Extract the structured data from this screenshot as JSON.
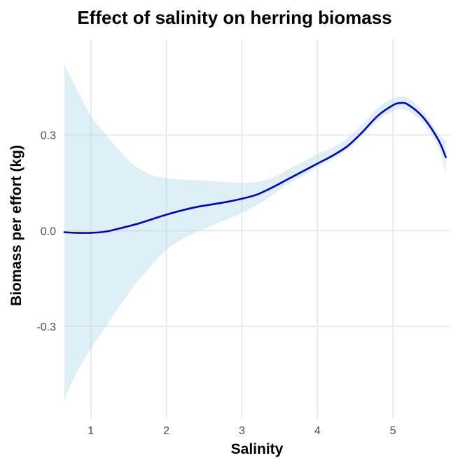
{
  "chart_data": {
    "type": "line",
    "title": "Effect of salinity on herring biomass",
    "xlabel": "Salinity",
    "ylabel": "Biomass per effort (kg)",
    "xlim": [
      0.65,
      5.75
    ],
    "ylim": [
      -0.59,
      0.6
    ],
    "x_ticks": [
      {
        "value": 1,
        "label": "1"
      },
      {
        "value": 2,
        "label": "2"
      },
      {
        "value": 3,
        "label": "3"
      },
      {
        "value": 4,
        "label": "4"
      },
      {
        "value": 5,
        "label": "5"
      }
    ],
    "y_ticks": [
      {
        "value": -0.3,
        "label": "-0.3"
      },
      {
        "value": 0.0,
        "label": "0.0"
      },
      {
        "value": 0.3,
        "label": "0.3"
      }
    ],
    "grid": true,
    "legend": "none",
    "colors": {
      "line": "#0000CD",
      "ribbon": "#ADD8E6"
    },
    "series": [
      {
        "x": [
          0.65,
          0.8,
          1.0,
          1.2,
          1.4,
          1.6,
          1.8,
          2.0,
          2.2,
          2.4,
          2.6,
          2.8,
          3.0,
          3.2,
          3.4,
          3.6,
          3.8,
          4.0,
          4.2,
          4.4,
          4.6,
          4.8,
          5.0,
          5.1,
          5.2,
          5.4,
          5.6,
          5.7
        ],
        "y": [
          -0.005,
          -0.007,
          -0.007,
          -0.003,
          0.008,
          0.02,
          0.035,
          0.05,
          0.063,
          0.074,
          0.082,
          0.09,
          0.1,
          0.113,
          0.135,
          0.16,
          0.185,
          0.21,
          0.235,
          0.265,
          0.31,
          0.36,
          0.393,
          0.4,
          0.395,
          0.355,
          0.285,
          0.23
        ],
        "lower": [
          -0.53,
          -0.45,
          -0.37,
          -0.3,
          -0.23,
          -0.165,
          -0.11,
          -0.06,
          -0.028,
          -0.005,
          0.015,
          0.035,
          0.055,
          0.08,
          0.11,
          0.145,
          0.17,
          0.2,
          0.225,
          0.255,
          0.3,
          0.345,
          0.375,
          0.38,
          0.375,
          0.34,
          0.26,
          0.18
        ],
        "upper": [
          0.52,
          0.45,
          0.36,
          0.3,
          0.245,
          0.2,
          0.175,
          0.165,
          0.16,
          0.158,
          0.155,
          0.152,
          0.15,
          0.153,
          0.165,
          0.19,
          0.215,
          0.24,
          0.26,
          0.29,
          0.335,
          0.385,
          0.415,
          0.42,
          0.415,
          0.375,
          0.305,
          0.28
        ]
      }
    ]
  }
}
